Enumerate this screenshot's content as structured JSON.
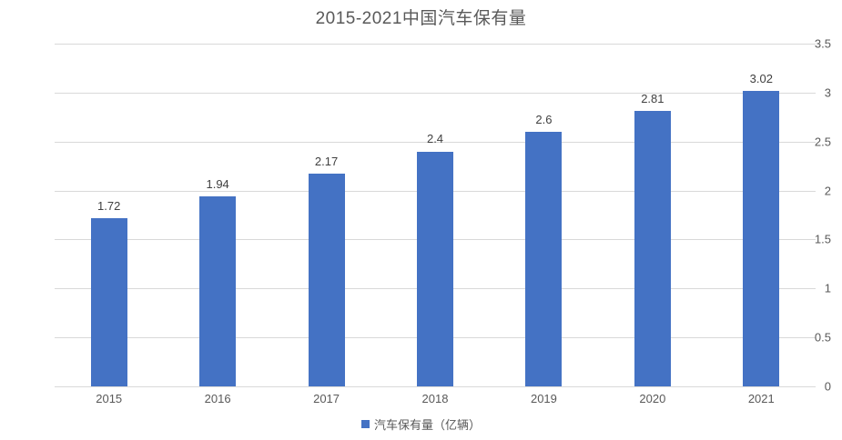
{
  "chart_data": {
    "type": "bar",
    "title": "2015-2021中国汽车保有量",
    "categories": [
      "2015",
      "2016",
      "2017",
      "2018",
      "2019",
      "2020",
      "2021"
    ],
    "values": [
      1.72,
      1.94,
      2.17,
      2.4,
      2.6,
      2.81,
      3.02
    ],
    "value_labels": [
      "1.72",
      "1.94",
      "2.17",
      "2.4",
      "2.6",
      "2.81",
      "3.02"
    ],
    "xlabel": "",
    "ylabel": "",
    "ylim": [
      0,
      3.5
    ],
    "y_tick_labels": [
      "0",
      "0.5",
      "1",
      "1.5",
      "2",
      "2.5",
      "3",
      "3.5"
    ],
    "grid": "horizontal",
    "legend_position": "bottom",
    "legend": [
      {
        "label": "汽车保有量（亿辆）",
        "color": "#4472C4"
      }
    ],
    "colors": {
      "bar": "#4472C4",
      "gridline": "#d9d9d9",
      "axis_text": "#595959",
      "value_label_text": "#404040",
      "title_text": "#595959",
      "background": "#ffffff"
    }
  }
}
